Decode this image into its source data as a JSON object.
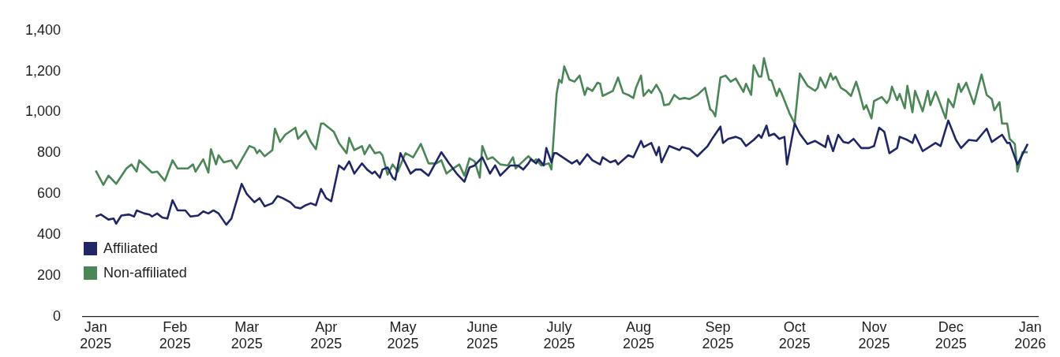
{
  "chart_data": {
    "type": "line",
    "xlim": [
      "2024-12-27",
      "2026-01-04"
    ],
    "xticks": [
      {
        "value": "2025-01-01",
        "label": "Jan 2025"
      },
      {
        "value": "2025-02-01",
        "label": "Feb 2025"
      },
      {
        "value": "2025-03-01",
        "label": "Mar 2025"
      },
      {
        "value": "2025-04-01",
        "label": "Apr 2025"
      },
      {
        "value": "2025-05-01",
        "label": "May 2025"
      },
      {
        "value": "2025-06-01",
        "label": "June 2025"
      },
      {
        "value": "2025-07-01",
        "label": "July 2025"
      },
      {
        "value": "2025-08-01",
        "label": "Aug 2025"
      },
      {
        "value": "2025-09-01",
        "label": "Sep 2025"
      },
      {
        "value": "2025-10-01",
        "label": "Oct 2025"
      },
      {
        "value": "2025-11-01",
        "label": "Nov 2025"
      },
      {
        "value": "2025-12-01",
        "label": "Dec 2025"
      },
      {
        "value": "2026-01-01",
        "label": "Jan 2026"
      }
    ],
    "ylim": [
      0,
      1400
    ],
    "yticks": [
      0,
      200,
      400,
      600,
      800,
      {
        "value": 1000,
        "label": "1,000"
      },
      {
        "value": 1200,
        "label": "1,200"
      },
      {
        "value": 1400,
        "label": "1,400"
      }
    ],
    "grid": false,
    "legend": "bottom left",
    "marker": "none",
    "line_style": "solid",
    "series": [
      {
        "name": "Affiliated",
        "color": "#212766",
        "x": [
          "2025-01-01",
          "2025-01-03",
          "2025-01-06",
          "2025-01-08",
          "2025-01-09",
          "2025-01-11",
          "2025-01-14",
          "2025-01-16",
          "2025-01-17",
          "2025-01-20",
          "2025-01-22",
          "2025-01-23",
          "2025-01-25",
          "2025-01-27",
          "2025-01-29",
          "2025-01-31",
          "2025-02-02",
          "2025-02-05",
          "2025-02-07",
          "2025-02-10",
          "2025-02-12",
          "2025-02-14",
          "2025-02-16",
          "2025-02-18",
          "2025-02-21",
          "2025-02-23",
          "2025-02-27",
          "2025-03-01",
          "2025-03-04",
          "2025-03-06",
          "2025-03-08",
          "2025-03-11",
          "2025-03-13",
          "2025-03-15",
          "2025-03-18",
          "2025-03-20",
          "2025-03-22",
          "2025-03-24",
          "2025-03-26",
          "2025-03-28",
          "2025-03-30",
          "2025-04-01",
          "2025-04-03",
          "2025-04-06",
          "2025-04-08",
          "2025-04-10",
          "2025-04-12",
          "2025-04-15",
          "2025-04-17",
          "2025-04-19",
          "2025-04-20",
          "2025-04-22",
          "2025-04-23",
          "2025-04-25",
          "2025-04-27",
          "2025-04-28",
          "2025-04-30",
          "2025-05-04",
          "2025-05-06",
          "2025-05-08",
          "2025-05-11",
          "2025-05-16",
          "2025-05-19",
          "2025-05-22",
          "2025-05-25",
          "2025-05-27",
          "2025-05-29",
          "2025-06-01",
          "2025-06-04",
          "2025-06-06",
          "2025-06-08",
          "2025-06-12",
          "2025-06-15",
          "2025-06-17",
          "2025-06-19",
          "2025-06-20",
          "2025-06-22",
          "2025-06-23",
          "2025-06-25",
          "2025-06-26",
          "2025-06-28",
          "2025-06-29",
          "2025-06-30",
          "2025-07-06",
          "2025-07-08",
          "2025-07-09",
          "2025-07-12",
          "2025-07-14",
          "2025-07-17",
          "2025-07-18",
          "2025-07-21",
          "2025-07-23",
          "2025-07-24",
          "2025-07-28",
          "2025-07-30",
          "2025-08-02",
          "2025-08-03",
          "2025-08-06",
          "2025-08-08",
          "2025-08-09",
          "2025-08-10",
          "2025-08-13",
          "2025-08-17",
          "2025-08-18",
          "2025-08-21",
          "2025-08-24",
          "2025-08-28",
          "2025-08-30",
          "2025-09-02",
          "2025-09-03",
          "2025-09-05",
          "2025-09-08",
          "2025-09-10",
          "2025-09-12",
          "2025-09-15",
          "2025-09-17",
          "2025-09-18",
          "2025-09-20",
          "2025-09-21",
          "2025-09-23",
          "2025-09-25",
          "2025-09-27",
          "2025-09-28",
          "2025-10-01",
          "2025-10-03",
          "2025-10-06",
          "2025-10-09",
          "2025-10-13",
          "2025-10-14",
          "2025-10-16",
          "2025-10-18",
          "2025-10-20",
          "2025-10-22",
          "2025-10-24",
          "2025-10-27",
          "2025-10-30",
          "2025-11-01",
          "2025-11-03",
          "2025-11-05",
          "2025-11-07",
          "2025-11-10",
          "2025-11-11",
          "2025-11-14",
          "2025-11-16",
          "2025-11-17",
          "2025-11-20",
          "2025-11-25",
          "2025-11-27",
          "2025-11-30",
          "2025-12-03",
          "2025-12-05",
          "2025-12-08",
          "2025-12-11",
          "2025-12-13",
          "2025-12-15",
          "2025-12-17",
          "2025-12-21",
          "2025-12-23",
          "2025-12-24",
          "2025-12-27",
          "2025-12-31"
        ],
        "values": [
          490,
          500,
          475,
          480,
          455,
          495,
          500,
          490,
          520,
          505,
          500,
          490,
          505,
          485,
          480,
          570,
          520,
          520,
          490,
          495,
          515,
          505,
          520,
          505,
          450,
          480,
          650,
          600,
          560,
          580,
          540,
          555,
          590,
          580,
          560,
          535,
          530,
          545,
          555,
          545,
          625,
          580,
          565,
          740,
          720,
          760,
          700,
          750,
          720,
          700,
          710,
          680,
          720,
          730,
          680,
          670,
          800,
          700,
          720,
          720,
          690,
          805,
          750,
          700,
          660,
          730,
          740,
          780,
          700,
          740,
          690,
          740,
          740,
          720,
          750,
          770,
          750,
          770,
          740,
          825,
          755,
          800,
          800,
          750,
          765,
          745,
          795,
          765,
          745,
          780,
          755,
          765,
          745,
          790,
          780,
          860,
          830,
          850,
          790,
          830,
          755,
          835,
          815,
          830,
          820,
          785,
          835,
          875,
          930,
          850,
          870,
          880,
          870,
          835,
          865,
          890,
          875,
          935,
          885,
          895,
          870,
          880,
          745,
          945,
          895,
          845,
          860,
          830,
          885,
          810,
          890,
          855,
          850,
          870,
          825,
          825,
          835,
          925,
          905,
          800,
          825,
          880,
          865,
          850,
          890,
          810,
          850,
          835,
          960,
          865,
          825,
          865,
          860,
          890,
          920,
          855,
          890,
          850,
          850,
          745,
          845
        ]
      },
      {
        "name": "Non-affiliated",
        "color": "#4a8656",
        "x": [
          "2025-01-01",
          "2025-01-04",
          "2025-01-06",
          "2025-01-09",
          "2025-01-13",
          "2025-01-15",
          "2025-01-17",
          "2025-01-18",
          "2025-01-23",
          "2025-01-25",
          "2025-01-28",
          "2025-01-31",
          "2025-02-02",
          "2025-02-06",
          "2025-02-08",
          "2025-02-09",
          "2025-02-12",
          "2025-02-14",
          "2025-02-15",
          "2025-02-17",
          "2025-02-18",
          "2025-02-20",
          "2025-02-23",
          "2025-02-25",
          "2025-03-02",
          "2025-03-04",
          "2025-03-05",
          "2025-03-06",
          "2025-03-08",
          "2025-03-11",
          "2025-03-12",
          "2025-03-14",
          "2025-03-16",
          "2025-03-20",
          "2025-03-21",
          "2025-03-24",
          "2025-03-26",
          "2025-03-28",
          "2025-03-30",
          "2025-03-31",
          "2025-04-04",
          "2025-04-06",
          "2025-04-09",
          "2025-04-10",
          "2025-04-12",
          "2025-04-15",
          "2025-04-16",
          "2025-04-18",
          "2025-04-20",
          "2025-04-22",
          "2025-04-23",
          "2025-04-25",
          "2025-04-27",
          "2025-04-29",
          "2025-05-02",
          "2025-05-05",
          "2025-05-08",
          "2025-05-11",
          "2025-05-14",
          "2025-05-16",
          "2025-05-18",
          "2025-05-20",
          "2025-05-23",
          "2025-05-25",
          "2025-05-27",
          "2025-05-29",
          "2025-05-31",
          "2025-06-01",
          "2025-06-03",
          "2025-06-05",
          "2025-06-08",
          "2025-06-11",
          "2025-06-13",
          "2025-06-14",
          "2025-06-16",
          "2025-06-19",
          "2025-06-21",
          "2025-06-22",
          "2025-06-24",
          "2025-06-27",
          "2025-06-28",
          "2025-06-30",
          "2025-07-01",
          "2025-07-02",
          "2025-07-03",
          "2025-07-05",
          "2025-07-07",
          "2025-07-09",
          "2025-07-11",
          "2025-07-12",
          "2025-07-14",
          "2025-07-16",
          "2025-07-17",
          "2025-07-18",
          "2025-07-22",
          "2025-07-24",
          "2025-07-26",
          "2025-07-28",
          "2025-07-30",
          "2025-07-31",
          "2025-08-02",
          "2025-08-03",
          "2025-08-05",
          "2025-08-06",
          "2025-08-08",
          "2025-08-10",
          "2025-08-11",
          "2025-08-13",
          "2025-08-15",
          "2025-08-17",
          "2025-08-19",
          "2025-08-21",
          "2025-08-24",
          "2025-08-27",
          "2025-08-29",
          "2025-08-30",
          "2025-08-31",
          "2025-09-02",
          "2025-09-04",
          "2025-09-06",
          "2025-09-08",
          "2025-09-11",
          "2025-09-12",
          "2025-09-14",
          "2025-09-15",
          "2025-09-17",
          "2025-09-18",
          "2025-09-19",
          "2025-09-21",
          "2025-09-22",
          "2025-09-24",
          "2025-09-25",
          "2025-09-26",
          "2025-09-29",
          "2025-10-01",
          "2025-10-03",
          "2025-10-06",
          "2025-10-09",
          "2025-10-10",
          "2025-10-11",
          "2025-10-13",
          "2025-10-15",
          "2025-10-16",
          "2025-10-17",
          "2025-10-19",
          "2025-10-21",
          "2025-10-23",
          "2025-10-25",
          "2025-10-26",
          "2025-10-28",
          "2025-10-29",
          "2025-10-31",
          "2025-11-01",
          "2025-11-04",
          "2025-11-06",
          "2025-11-07",
          "2025-11-08",
          "2025-11-10",
          "2025-11-11",
          "2025-11-13",
          "2025-11-14",
          "2025-11-16",
          "2025-11-17",
          "2025-11-20",
          "2025-11-22",
          "2025-11-23",
          "2025-11-25",
          "2025-11-26",
          "2025-11-29",
          "2025-11-30",
          "2025-12-02",
          "2025-12-04",
          "2025-12-05",
          "2025-12-07",
          "2025-12-10",
          "2025-12-13",
          "2025-12-15",
          "2025-12-17",
          "2025-12-18",
          "2025-12-20",
          "2025-12-21",
          "2025-12-23",
          "2025-12-24",
          "2025-12-26",
          "2025-12-27",
          "2025-12-29",
          "2025-12-31"
        ],
        "values": [
          715,
          645,
          690,
          650,
          725,
          745,
          710,
          765,
          705,
          710,
          665,
          765,
          725,
          725,
          745,
          710,
          770,
          705,
          820,
          745,
          790,
          755,
          765,
          725,
          835,
          825,
          800,
          815,
          785,
          815,
          920,
          855,
          890,
          925,
          870,
          910,
          855,
          820,
          945,
          945,
          905,
          850,
          800,
          875,
          815,
          835,
          795,
          840,
          800,
          805,
          790,
          695,
          745,
          710,
          800,
          780,
          845,
          750,
          750,
          765,
          700,
          720,
          745,
          690,
          775,
          760,
          680,
          835,
          770,
          780,
          745,
          740,
          780,
          725,
          750,
          785,
          760,
          770,
          740,
          750,
          720,
          1090,
          1160,
          1145,
          1225,
          1160,
          1150,
          1180,
          1085,
          1120,
          1105,
          1145,
          1140,
          1080,
          1105,
          1170,
          1095,
          1085,
          1070,
          1120,
          1180,
          1080,
          1110,
          1095,
          1135,
          1090,
          1035,
          1040,
          1085,
          1065,
          1070,
          1065,
          1085,
          1120,
          1015,
          1005,
          980,
          1170,
          1180,
          1150,
          1165,
          1100,
          1140,
          1085,
          1230,
          1175,
          1175,
          1265,
          1160,
          1155,
          1080,
          1115,
          1090,
          995,
          945,
          1190,
          1130,
          1105,
          1120,
          1170,
          1120,
          1190,
          1160,
          1175,
          1120,
          1105,
          1080,
          1150,
          1110,
          1015,
          1035,
          970,
          1055,
          1075,
          1045,
          1065,
          1125,
          1060,
          1090,
          1020,
          1130,
          1000,
          1105,
          1005,
          1105,
          1035,
          1100,
          1070,
          970,
          1065,
          1025,
          1140,
          1100,
          1145,
          1040,
          1185,
          1085,
          1065,
          1010,
          1050,
          945,
          945,
          870,
          845,
          710,
          805,
          805
        ]
      }
    ]
  }
}
